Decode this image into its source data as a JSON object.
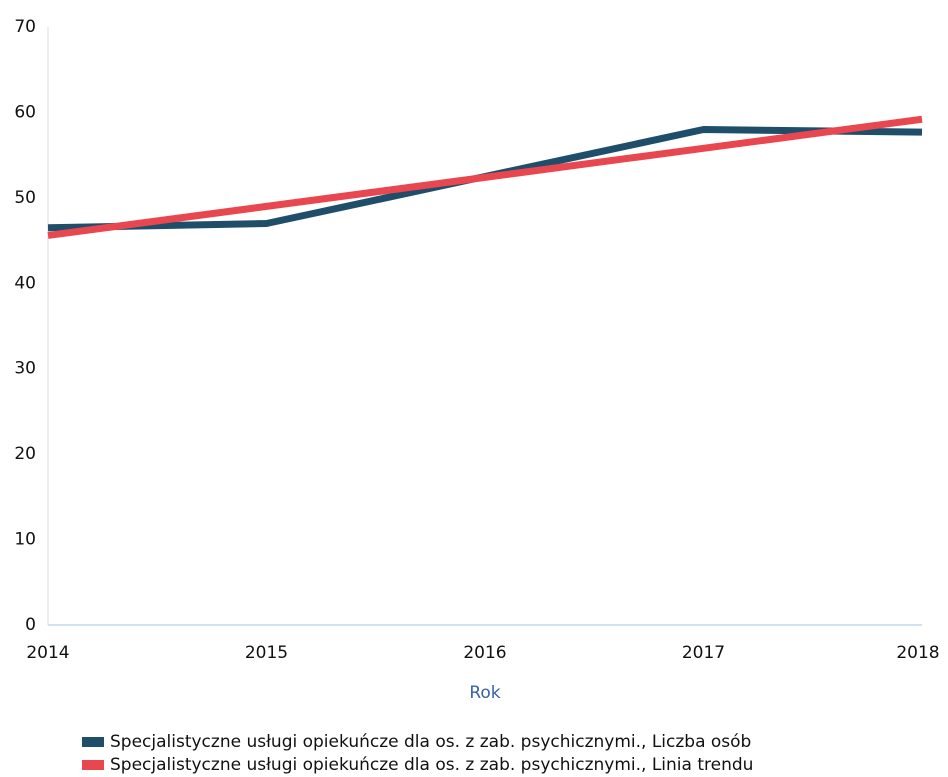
{
  "chart_data": {
    "type": "line",
    "x_label": "Rok",
    "x": [
      2014,
      2015,
      2016,
      2017,
      2018
    ],
    "xlim": [
      2014,
      2018
    ],
    "xticks": [
      2014,
      2015,
      2016,
      2017,
      2018
    ],
    "ylim": [
      0,
      70
    ],
    "yticks": [
      0,
      10,
      20,
      30,
      40,
      50,
      60,
      70
    ],
    "grid": false,
    "legend": "bottom",
    "series": [
      {
        "name": "Specjalistyczne usługi opiekuńcze dla os. z zab. psychicznymi., Liczba osób",
        "color": "#1f4e6b",
        "values": [
          46.5,
          47,
          52.5,
          58,
          57.7
        ]
      },
      {
        "name": "Specjalistyczne usługi opiekuńcze dla os. z zab. psychicznymi., Linia trendu",
        "color": "#e8474f",
        "values": [
          45.6,
          49.0,
          52.4,
          55.8,
          59.2
        ]
      }
    ]
  }
}
